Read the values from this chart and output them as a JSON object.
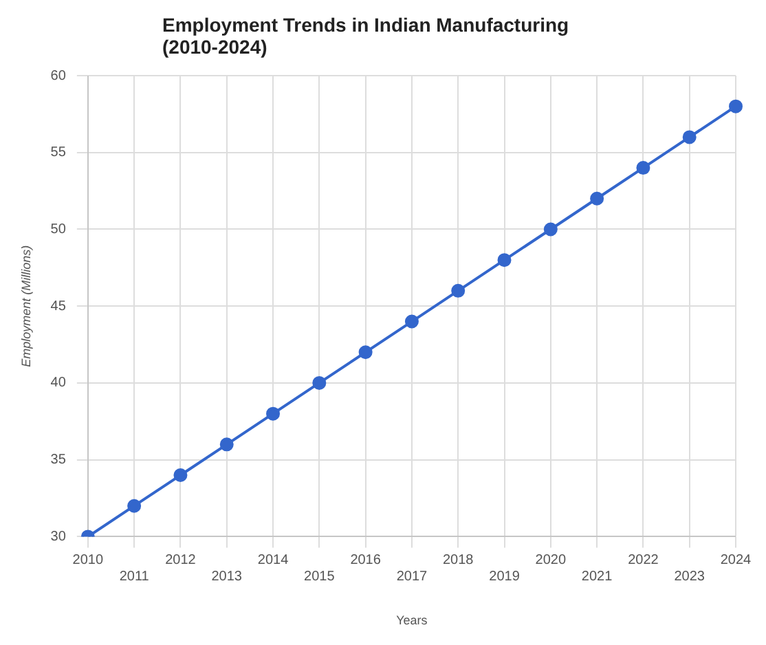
{
  "chart_data": {
    "type": "line",
    "title": "Employment Trends in Indian Manufacturing (2010-2024)",
    "xlabel": "Years",
    "ylabel": "Employment (Millions)",
    "categories": [
      "2010",
      "2011",
      "2012",
      "2013",
      "2014",
      "2015",
      "2016",
      "2017",
      "2018",
      "2019",
      "2020",
      "2021",
      "2022",
      "2023",
      "2024"
    ],
    "series": [
      {
        "color": "#3366cc",
        "values": [
          30,
          32,
          34,
          36,
          38,
          40,
          42,
          44,
          46,
          48,
          50,
          52,
          54,
          56,
          58
        ]
      }
    ],
    "ylim": [
      30,
      60
    ],
    "yticks": [
      30,
      35,
      40,
      45,
      50,
      55,
      60
    ],
    "grid": true,
    "legend": false,
    "marker": "circle",
    "line_style": "solid"
  }
}
